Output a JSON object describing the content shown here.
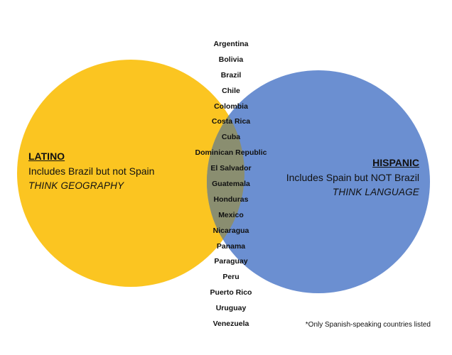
{
  "colors": {
    "latino_circle": "#FBC521",
    "hispanic_circle": "#6B8FD1",
    "overlap": "#8A8E70"
  },
  "latino": {
    "title": "LATINO",
    "line1": "Includes Brazil but not Spain",
    "line2": "THINK GEOGRAPHY"
  },
  "hispanic": {
    "title": "HISPANIC",
    "line1": "Includes Spain but NOT Brazil",
    "line2": "THINK LANGUAGE"
  },
  "countries": [
    "Argentina",
    "Bolivia",
    "Brazil",
    "Chile",
    "Colombia",
    "Costa Rica",
    "Cuba",
    "Dominican Republic",
    "El Salvador",
    "Guatemala",
    "Honduras",
    "Mexico",
    "Nicaragua",
    "Panama",
    "Paraguay",
    "Peru",
    "Puerto Rico",
    "Uruguay",
    "Venezuela"
  ],
  "footnote": "*Only Spanish-speaking countries listed"
}
